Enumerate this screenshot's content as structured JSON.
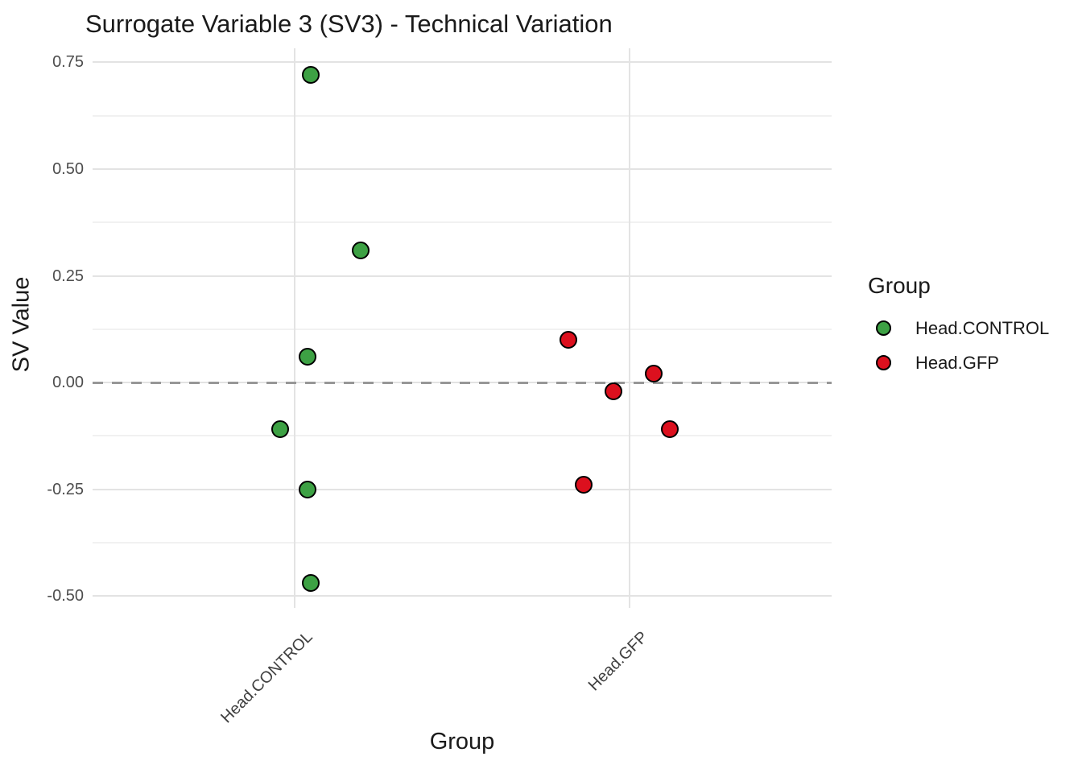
{
  "title": "Surrogate Variable 3 (SV3) - Technical Variation",
  "colors": {
    "control_green": "#3da144",
    "gfp_red": "#dc101e",
    "point_stroke": "#000000",
    "grid_major": "#e3e3e3",
    "grid_minor": "#f1f1f1",
    "zero_dash": "#979797",
    "tick_label": "#4d4d4d"
  },
  "chart_data": {
    "type": "scatter",
    "title": "Surrogate Variable 3 (SV3) - Technical Variation",
    "xlabel": "Group",
    "ylabel": "SV Value",
    "x_categories": [
      "Head.CONTROL",
      "Head.GFP"
    ],
    "x_category_positions": [
      1,
      2
    ],
    "xlim": [
      0.397,
      2.603
    ],
    "ylim": [
      -0.528,
      0.783
    ],
    "y_ticks": [
      0.75,
      0.5,
      0.25,
      0.0,
      -0.25,
      -0.5
    ],
    "y_tick_labels": [
      "0.75",
      "0.50",
      "0.25",
      "0.00",
      "-0.25",
      "-0.50"
    ],
    "y_minor_gridlines": [
      0.625,
      0.375,
      0.125,
      -0.125,
      -0.375
    ],
    "grid": true,
    "zero_line": {
      "y": 0.0,
      "style": "dashed"
    },
    "legend": {
      "title": "Group",
      "position": "right",
      "items": [
        {
          "label": "Head.CONTROL",
          "color": "#3da144"
        },
        {
          "label": "Head.GFP",
          "color": "#dc101e"
        }
      ]
    },
    "series": [
      {
        "name": "Head.CONTROL",
        "color": "#3da144",
        "points": [
          {
            "x": 1.048,
            "y": 0.72
          },
          {
            "x": 1.197,
            "y": 0.31
          },
          {
            "x": 1.038,
            "y": 0.06
          },
          {
            "x": 0.957,
            "y": -0.11
          },
          {
            "x": 1.038,
            "y": -0.25
          },
          {
            "x": 1.048,
            "y": -0.47
          }
        ]
      },
      {
        "name": "Head.GFP",
        "color": "#dc101e",
        "points": [
          {
            "x": 1.817,
            "y": 0.1
          },
          {
            "x": 2.072,
            "y": 0.02
          },
          {
            "x": 1.952,
            "y": -0.02
          },
          {
            "x": 2.12,
            "y": -0.11
          },
          {
            "x": 1.863,
            "y": -0.24
          }
        ]
      }
    ]
  }
}
